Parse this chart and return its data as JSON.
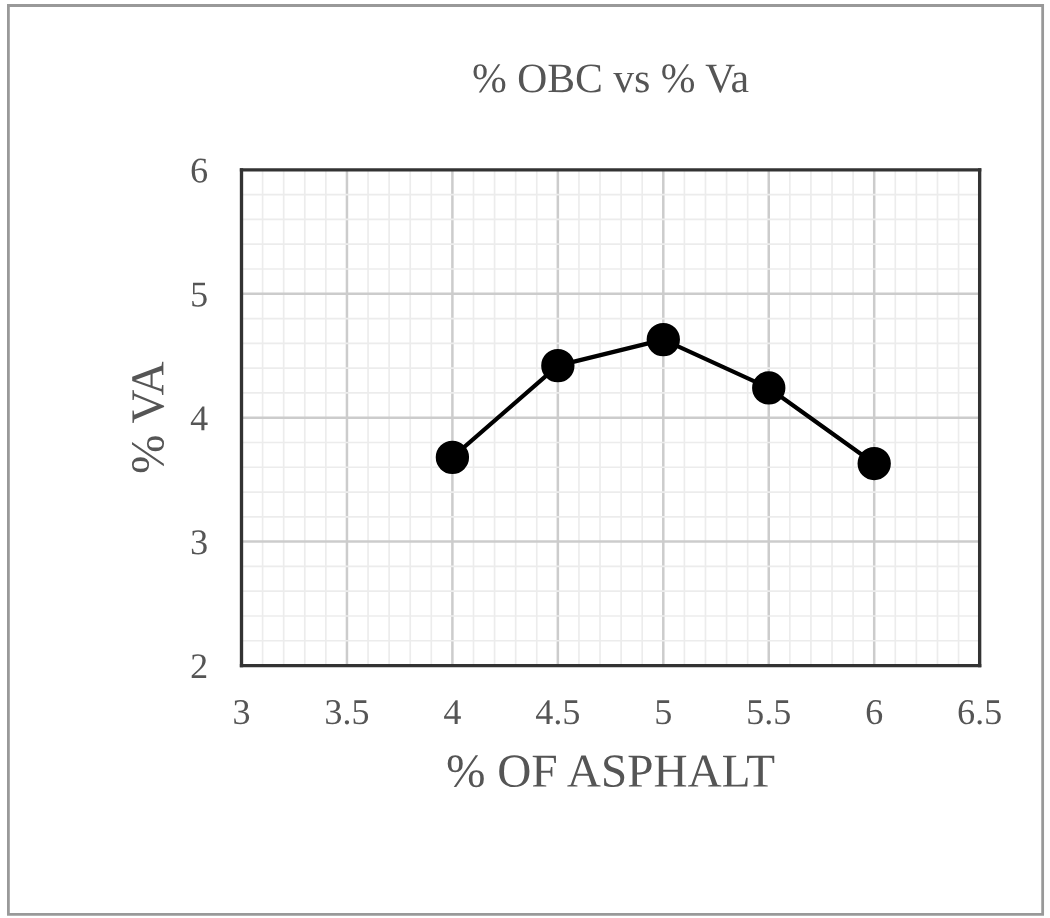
{
  "chart_data": {
    "type": "line",
    "title": "% OBC vs % Va",
    "xlabel": "% OF ASPHALT",
    "ylabel": "% VA",
    "x": [
      4,
      4.5,
      5,
      5.5,
      6
    ],
    "series": [
      {
        "color": "#000000",
        "values": [
          3.68,
          4.42,
          4.63,
          4.24,
          3.63
        ]
      }
    ],
    "xlim": [
      3,
      6.5
    ],
    "xticks": [
      3,
      3.5,
      4,
      4.5,
      5,
      5.5,
      6,
      6.5
    ],
    "ylim": [
      2,
      6
    ],
    "yticks": [
      2,
      3,
      4,
      5,
      6
    ],
    "grid": true,
    "marker": "circle",
    "line_style": "solid",
    "legend": false
  }
}
